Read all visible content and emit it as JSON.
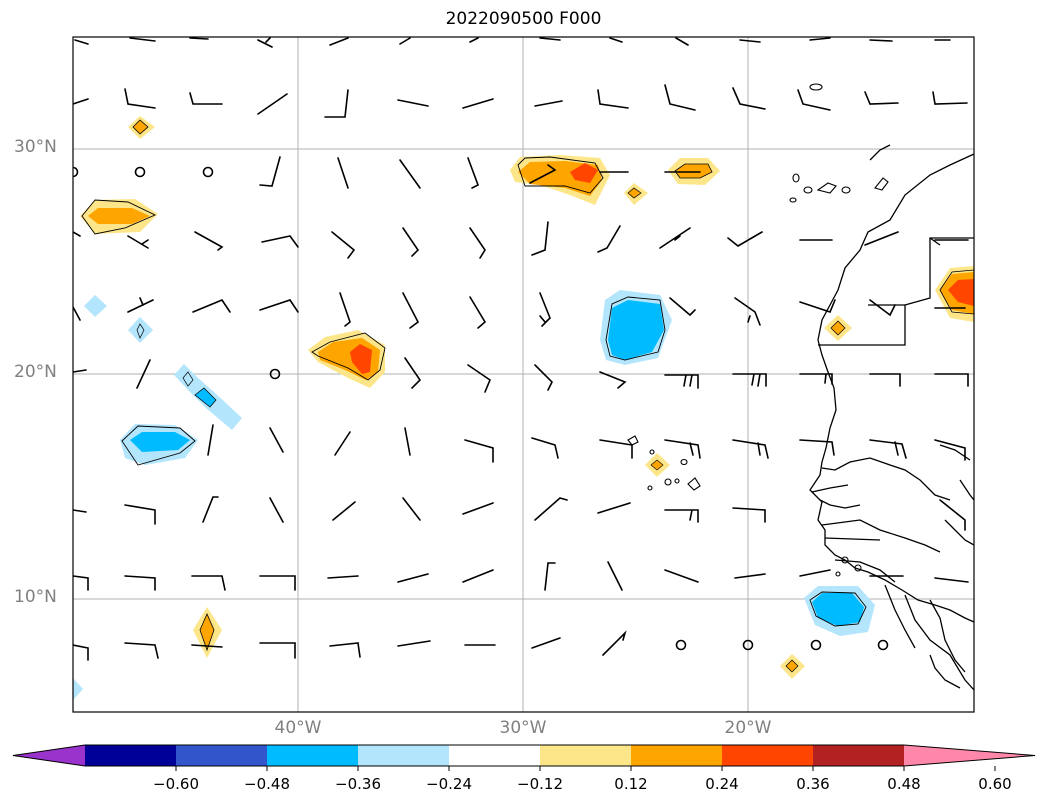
{
  "title": "2022090500 F000",
  "map": {
    "lat_labels": [
      {
        "label": "30°N",
        "lat": 30
      },
      {
        "label": "20°N",
        "lat": 20
      },
      {
        "label": "10°N",
        "lat": 10
      }
    ],
    "lon_labels": [
      {
        "label": "40°W",
        "lon": -40
      },
      {
        "label": "30°W",
        "lon": -30
      },
      {
        "label": "20°W",
        "lon": -20
      }
    ],
    "extent": {
      "lon_min": -50,
      "lon_max": -10,
      "lat_min": 5,
      "lat_max": 35
    },
    "gridlines": true
  },
  "colorbar": {
    "tick_labels": [
      "−0.60",
      "−0.48",
      "−0.36",
      "−0.24",
      "−0.12",
      "0.12",
      "0.24",
      "0.36",
      "0.48",
      "0.60"
    ],
    "levels": [
      -0.6,
      -0.48,
      -0.36,
      -0.24,
      -0.12,
      0.12,
      0.24,
      0.36,
      0.48,
      0.6
    ],
    "colors": [
      "#9933cc",
      "#000099",
      "#3355cc",
      "#00bbff",
      "#b3e5fc",
      "#ffffff",
      "#fde68a",
      "#ffa500",
      "#ff4500",
      "#b22222",
      "#ff88aa"
    ],
    "extend": "both"
  }
}
